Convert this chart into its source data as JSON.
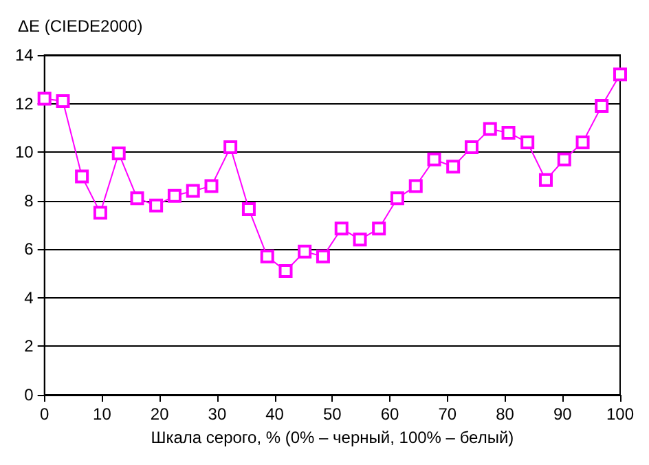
{
  "chart_data": {
    "type": "line",
    "ylabel": "ΔE (CIEDE2000)",
    "xlabel": "Шкала серого, % (0% – черный, 100% – белый)",
    "x": [
      0,
      3.2,
      6.5,
      9.7,
      12.9,
      16.1,
      19.4,
      22.6,
      25.8,
      29,
      32.3,
      35.5,
      38.7,
      41.9,
      45.2,
      48.4,
      51.6,
      54.8,
      58.1,
      61.3,
      64.5,
      67.7,
      71,
      74.2,
      77.4,
      80.6,
      83.9,
      87.1,
      90.3,
      93.5,
      96.8,
      100
    ],
    "series": [
      {
        "color": "#ff00ff",
        "values": [
          12.2,
          12.1,
          9.0,
          7.5,
          9.95,
          8.1,
          7.8,
          8.2,
          8.4,
          8.6,
          10.2,
          7.65,
          5.7,
          5.1,
          5.9,
          5.7,
          6.85,
          6.4,
          6.85,
          8.1,
          8.6,
          9.7,
          9.4,
          10.2,
          10.95,
          10.8,
          10.4,
          8.85,
          9.7,
          10.4,
          11.9,
          13.2
        ]
      }
    ],
    "xlim": [
      0,
      100
    ],
    "xticks": [
      0,
      10,
      20,
      30,
      40,
      50,
      60,
      70,
      80,
      90,
      100
    ],
    "ylim": [
      0,
      14
    ],
    "yticks": [
      0,
      2,
      4,
      6,
      8,
      10,
      12,
      14
    ],
    "grid": "y",
    "marker": "square",
    "line_style": "solid"
  }
}
